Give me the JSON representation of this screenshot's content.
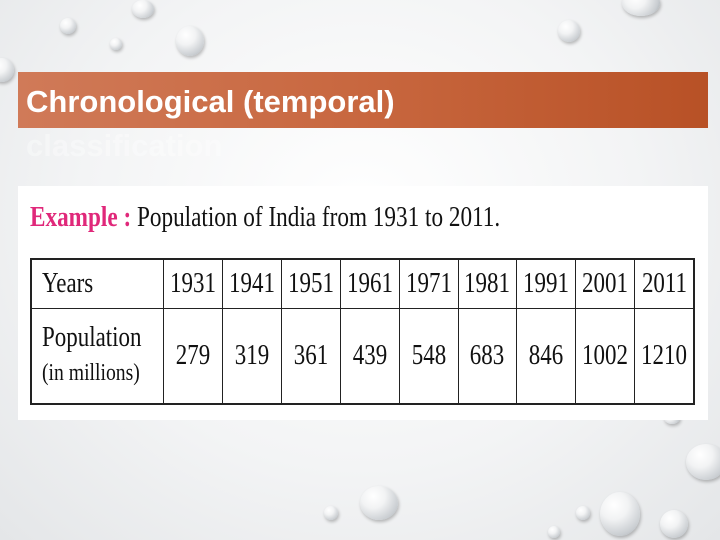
{
  "slide": {
    "title_line1": "Chronological (temporal)",
    "title_line2": "classification"
  },
  "example": {
    "label": "Example :",
    "text": "Population of India from 1931 to 2011."
  },
  "table": {
    "row_header_years": "Years",
    "row_header_population": "Population",
    "row_header_unit": "(in millions)",
    "years": [
      "1931",
      "1941",
      "1951",
      "1961",
      "1971",
      "1981",
      "1991",
      "2001",
      "2011"
    ],
    "population": [
      "279",
      "319",
      "361",
      "439",
      "548",
      "683",
      "846",
      "1002",
      "1210"
    ]
  }
}
